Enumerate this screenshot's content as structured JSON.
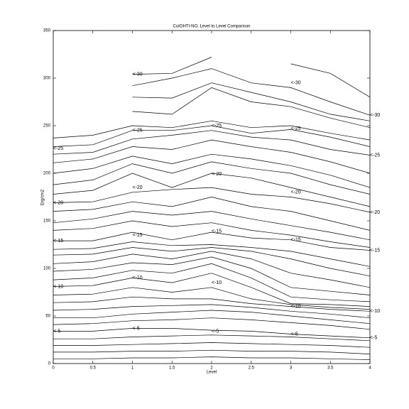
{
  "chart_data": {
    "type": "line",
    "title": "CuIOHTI-NO, Level to Level Comparison",
    "x_label": "Level",
    "y_label": "Erg/cm2",
    "x": [
      0,
      0.5,
      1,
      1.5,
      2,
      2.5,
      3,
      3.5,
      4
    ],
    "xlim": [
      0,
      4
    ],
    "xticks": [
      0,
      0.5,
      1,
      1.5,
      2,
      2.5,
      3,
      3.5,
      4
    ],
    "ylim": [
      0,
      350
    ],
    "yticks": [
      0,
      50,
      100,
      150,
      200,
      250,
      300,
      350
    ],
    "color": "#000000",
    "series": [
      {
        "values": [
          5,
          5,
          6,
          6,
          7,
          6,
          6,
          5,
          4
        ]
      },
      {
        "values": [
          12,
          12,
          13,
          13,
          14,
          13,
          13,
          12,
          10
        ]
      },
      {
        "values": [
          19,
          19,
          20,
          21,
          22,
          21,
          20,
          19,
          17
        ]
      },
      {
        "values": [
          26,
          26,
          28,
          29,
          30,
          29,
          28,
          26,
          24
        ]
      },
      {
        "values": [
          34,
          34,
          37,
          37,
          35,
          34,
          31,
          29,
          27
        ]
      },
      {
        "values": [
          41,
          42,
          45,
          46,
          48,
          46,
          43,
          40,
          36
        ]
      },
      {
        "values": [
          48,
          48,
          52,
          54,
          56,
          54,
          50,
          46,
          42
        ]
      },
      {
        "values": [
          56,
          57,
          60,
          61,
          62,
          59,
          55,
          52,
          48
        ]
      },
      {
        "values": [
          64,
          65,
          70,
          68,
          68,
          63,
          60,
          57,
          55
        ]
      },
      {
        "values": [
          72,
          73,
          80,
          75,
          80,
          68,
          62,
          59,
          57
        ]
      },
      {
        "values": [
          81,
          82,
          90,
          85,
          95,
          80,
          63,
          62,
          60
        ]
      },
      {
        "values": [
          88,
          90,
          98,
          95,
          105,
          90,
          70,
          67,
          65
        ]
      },
      {
        "values": [
          97,
          99,
          106,
          104,
          112,
          100,
          80,
          76,
          72
        ]
      },
      {
        "values": [
          105,
          107,
          115,
          110,
          118,
          110,
          95,
          88,
          80
        ]
      },
      {
        "values": [
          114,
          115,
          122,
          118,
          122,
          118,
          110,
          100,
          92
        ]
      },
      {
        "values": [
          120,
          121,
          128,
          124,
          125,
          122,
          118,
          110,
          102
        ]
      },
      {
        "values": [
          129,
          129,
          138,
          130,
          138,
          132,
          130,
          122,
          119
        ]
      },
      {
        "values": [
          140,
          142,
          150,
          144,
          148,
          140,
          135,
          128,
          122
        ]
      },
      {
        "values": [
          148,
          152,
          160,
          156,
          160,
          152,
          145,
          138,
          130
        ]
      },
      {
        "values": [
          160,
          162,
          170,
          165,
          175,
          165,
          160,
          150,
          140
        ]
      },
      {
        "values": [
          169,
          170,
          180,
          183,
          185,
          178,
          175,
          168,
          159
        ]
      },
      {
        "values": [
          178,
          182,
          200,
          185,
          200,
          195,
          185,
          175,
          165
        ]
      },
      {
        "values": [
          188,
          193,
          210,
          200,
          212,
          205,
          200,
          188,
          178
        ]
      },
      {
        "values": [
          200,
          205,
          218,
          210,
          220,
          215,
          208,
          198,
          185
        ]
      },
      {
        "values": [
          211,
          215,
          228,
          225,
          235,
          228,
          222,
          212,
          200
        ]
      },
      {
        "values": [
          220,
          222,
          236,
          240,
          245,
          238,
          235,
          225,
          219
        ]
      },
      {
        "values": [
          228,
          230,
          245,
          245,
          250,
          242,
          246,
          238,
          228
        ]
      },
      {
        "values": [
          237,
          240,
          250,
          248,
          255,
          248,
          250,
          242,
          235
        ]
      },
      {
        "values": [
          null,
          null,
          265,
          262,
          290,
          275,
          270,
          258,
          248
        ]
      },
      {
        "values": [
          null,
          null,
          280,
          279,
          295,
          285,
          275,
          262,
          255
        ]
      },
      {
        "values": [
          null,
          null,
          292,
          300,
          310,
          295,
          290,
          275,
          261
        ]
      },
      {
        "values": [
          null,
          null,
          304,
          305,
          322,
          null,
          null,
          null,
          null
        ]
      },
      {
        "values": [
          null,
          null,
          null,
          null,
          null,
          null,
          315,
          305,
          280
        ]
      }
    ],
    "annotations": [
      {
        "text": "<-5",
        "x": 0,
        "y": 34
      },
      {
        "text": "<-10",
        "x": 0,
        "y": 81
      },
      {
        "text": "<-15",
        "x": 0,
        "y": 129
      },
      {
        "text": "<-20",
        "x": 0,
        "y": 169
      },
      {
        "text": "<-25",
        "x": 0,
        "y": 226
      },
      {
        "text": "<-5",
        "x": 1,
        "y": 37
      },
      {
        "text": "<-10",
        "x": 1,
        "y": 90
      },
      {
        "text": "<-15",
        "x": 1,
        "y": 135
      },
      {
        "text": "<-20",
        "x": 1,
        "y": 185
      },
      {
        "text": "<-25",
        "x": 1,
        "y": 245
      },
      {
        "text": "<-30",
        "x": 1,
        "y": 304
      },
      {
        "text": "<-5",
        "x": 2,
        "y": 34
      },
      {
        "text": "<-10",
        "x": 2,
        "y": 85
      },
      {
        "text": "<-15",
        "x": 2,
        "y": 139
      },
      {
        "text": "<-20",
        "x": 2,
        "y": 199
      },
      {
        "text": "<-25",
        "x": 2,
        "y": 250
      },
      {
        "text": "<-5",
        "x": 3,
        "y": 31
      },
      {
        "text": "<-10",
        "x": 3,
        "y": 60
      },
      {
        "text": "<-15",
        "x": 3,
        "y": 130
      },
      {
        "text": "<-20",
        "x": 3,
        "y": 180
      },
      {
        "text": "<-25",
        "x": 3,
        "y": 247
      },
      {
        "text": "<-30",
        "x": 3,
        "y": 295
      },
      {
        "text": "<-5",
        "x": 4,
        "y": 27
      },
      {
        "text": "<-10",
        "x": 4,
        "y": 55
      },
      {
        "text": "<-15",
        "x": 4,
        "y": 119
      },
      {
        "text": "<-20",
        "x": 4,
        "y": 159
      },
      {
        "text": "<-25",
        "x": 4,
        "y": 219
      },
      {
        "text": "<-30",
        "x": 4,
        "y": 261
      }
    ]
  }
}
